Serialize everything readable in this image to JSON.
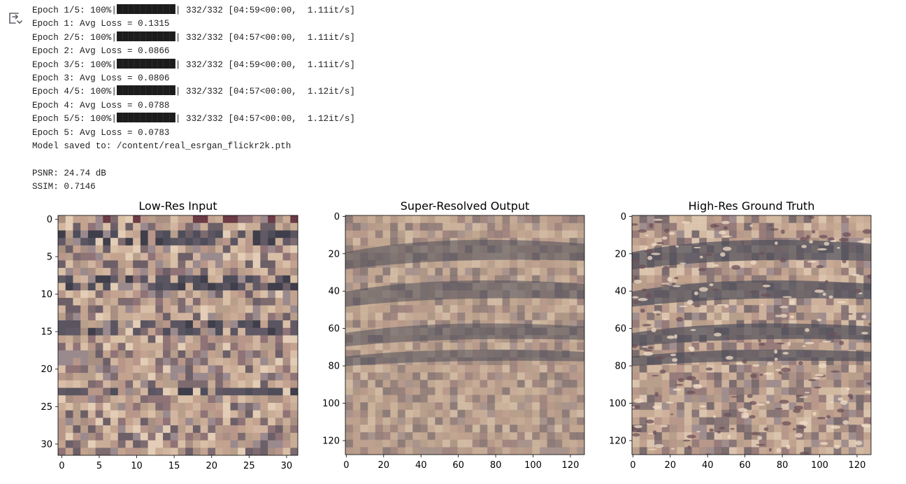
{
  "output_toggle": {
    "icon": "output-toggle-icon"
  },
  "console": {
    "lines": [
      {
        "pre": "Epoch 1/5: 100%|",
        "post": "| 332/332 [04:59<00:00,  1.11it/s]",
        "progress": 1.0
      },
      {
        "text": "Epoch 1: Avg Loss = 0.1315"
      },
      {
        "pre": "Epoch 2/5: 100%|",
        "post": "| 332/332 [04:57<00:00,  1.11it/s]",
        "progress": 1.0
      },
      {
        "text": "Epoch 2: Avg Loss = 0.0866"
      },
      {
        "pre": "Epoch 3/5: 100%|",
        "post": "| 332/332 [04:59<00:00,  1.11it/s]",
        "progress": 1.0
      },
      {
        "text": "Epoch 3: Avg Loss = 0.0806"
      },
      {
        "pre": "Epoch 4/5: 100%|",
        "post": "| 332/332 [04:57<00:00,  1.12it/s]",
        "progress": 1.0
      },
      {
        "text": "Epoch 4: Avg Loss = 0.0788"
      },
      {
        "pre": "Epoch 5/5: 100%|",
        "post": "| 332/332 [04:57<00:00,  1.12it/s]",
        "progress": 1.0
      },
      {
        "text": "Epoch 5: Avg Loss = 0.0783"
      },
      {
        "text": "Model saved to: /content/real_esrgan_flickr2k.pth"
      },
      {
        "text": ""
      },
      {
        "text": "PSNR: 24.74 dB"
      },
      {
        "text": "SSIM: 0.7146"
      }
    ]
  },
  "chart_data": [
    {
      "type": "image",
      "title": "Low-Res Input",
      "xlim": [
        -0.5,
        31.5
      ],
      "ylim": [
        31.5,
        -0.5
      ],
      "xticks": [
        0,
        5,
        10,
        15,
        20,
        25,
        30
      ],
      "yticks": [
        0,
        5,
        10,
        15,
        20,
        25,
        30
      ],
      "image_size": [
        32,
        32
      ],
      "texture": "pixelated"
    },
    {
      "type": "image",
      "title": "Super-Resolved Output",
      "xlim": [
        -0.5,
        127.5
      ],
      "ylim": [
        127.5,
        -0.5
      ],
      "xticks": [
        0,
        20,
        40,
        60,
        80,
        100,
        120
      ],
      "yticks": [
        0,
        20,
        40,
        60,
        80,
        100,
        120
      ],
      "image_size": [
        128,
        128
      ],
      "texture": "smooth"
    },
    {
      "type": "image",
      "title": "High-Res Ground Truth",
      "xlim": [
        -0.5,
        127.5
      ],
      "ylim": [
        127.5,
        -0.5
      ],
      "xticks": [
        0,
        20,
        40,
        60,
        80,
        100,
        120
      ],
      "yticks": [
        0,
        20,
        40,
        60,
        80,
        100,
        120
      ],
      "image_size": [
        128,
        128
      ],
      "texture": "sharp"
    }
  ],
  "colors": {
    "sand": "#b89f8c",
    "dark_band": "#4e4e5a",
    "light": "#e6cfb8",
    "mauve": "#8f6f72"
  }
}
